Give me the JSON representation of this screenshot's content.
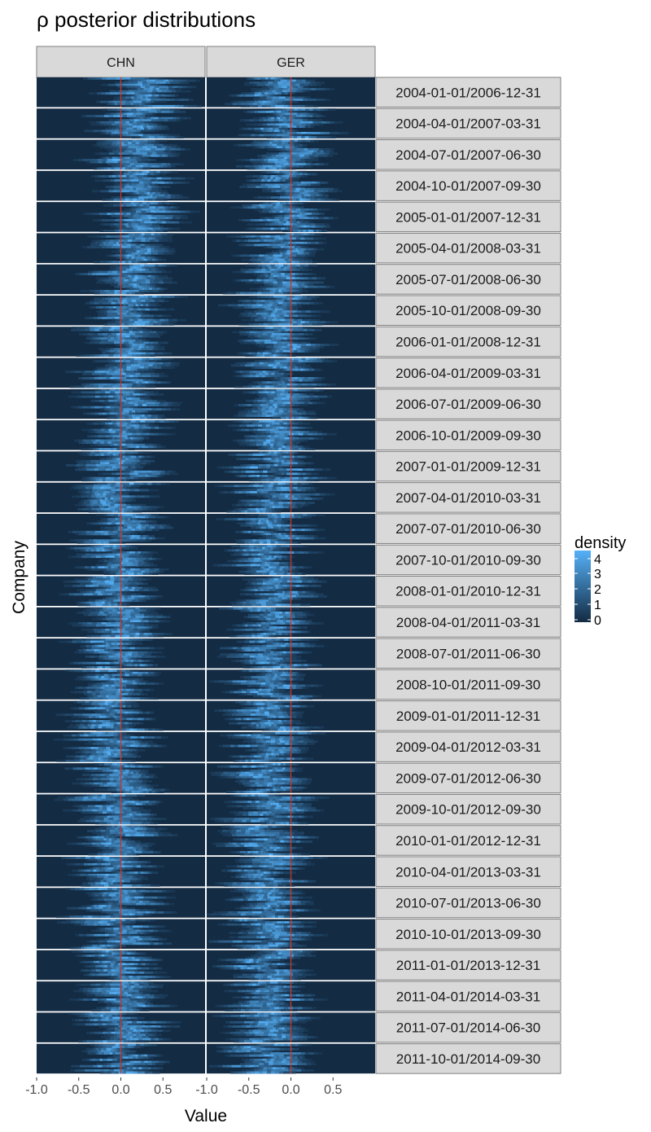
{
  "chart_data": {
    "type": "heatmap",
    "title": "ρ posterior distributions",
    "xlabel": "Value",
    "ylabel": "Company",
    "xlim": [
      -1.0,
      1.0
    ],
    "x_ticks": [
      "-1.0",
      "-0.5",
      "0.0",
      "0.5"
    ],
    "reference_line_x": 0.0,
    "reference_line_color": "#c0392b",
    "panel_columns": [
      "CHN",
      "GER"
    ],
    "panel_rows": [
      "2004-01-01/2006-12-31",
      "2004-04-01/2007-03-31",
      "2004-07-01/2007-06-30",
      "2004-10-01/2007-09-30",
      "2005-01-01/2007-12-31",
      "2005-04-01/2008-03-31",
      "2005-07-01/2008-06-30",
      "2005-10-01/2008-09-30",
      "2006-01-01/2008-12-31",
      "2006-04-01/2009-03-31",
      "2006-07-01/2009-06-30",
      "2006-10-01/2009-09-30",
      "2007-01-01/2009-12-31",
      "2007-04-01/2010-03-31",
      "2007-07-01/2010-06-30",
      "2007-10-01/2010-09-30",
      "2008-01-01/2010-12-31",
      "2008-04-01/2011-03-31",
      "2008-07-01/2011-06-30",
      "2008-10-01/2011-09-30",
      "2009-01-01/2011-12-31",
      "2009-04-01/2012-03-31",
      "2009-07-01/2012-06-30",
      "2009-10-01/2012-09-30",
      "2010-01-01/2012-12-31",
      "2010-04-01/2013-03-31",
      "2010-07-01/2013-06-30",
      "2010-10-01/2013-09-30",
      "2011-01-01/2013-12-31",
      "2011-04-01/2014-03-31",
      "2011-07-01/2014-06-30",
      "2011-10-01/2014-09-30"
    ],
    "legend": {
      "title": "density",
      "placement": "right",
      "range": [
        0,
        4.5
      ],
      "ticks": [
        "4",
        "3",
        "2",
        "1",
        "0"
      ],
      "color_low": "#132b43",
      "color_high": "#56b1f7"
    },
    "panel_posterior_mean": {
      "CHN": [
        0.25,
        0.2,
        0.2,
        0.2,
        0.2,
        0.15,
        0.1,
        0.1,
        0.1,
        0.1,
        0.05,
        0.05,
        0.05,
        0.0,
        0.0,
        -0.05,
        -0.05,
        -0.05,
        -0.05,
        -0.05,
        -0.05,
        -0.05,
        -0.05,
        -0.05,
        -0.05,
        -0.05,
        -0.05,
        -0.05,
        0.0,
        0.0,
        0.0,
        0.0
      ],
      "GER": [
        -0.2,
        -0.05,
        -0.05,
        -0.05,
        -0.05,
        -0.1,
        -0.1,
        -0.1,
        -0.15,
        -0.15,
        -0.15,
        -0.15,
        -0.2,
        -0.2,
        -0.2,
        -0.2,
        -0.2,
        -0.2,
        -0.2,
        -0.25,
        -0.25,
        -0.25,
        -0.25,
        -0.25,
        -0.25,
        -0.3,
        -0.3,
        -0.3,
        -0.3,
        -0.3,
        -0.3,
        -0.3
      ]
    }
  },
  "colors": {
    "panel_background": "#132b43",
    "strip_background": "#d9d9d9",
    "strip_border": "#7f7f7f",
    "text": "#000000",
    "tick_text": "#4d4d4d"
  }
}
